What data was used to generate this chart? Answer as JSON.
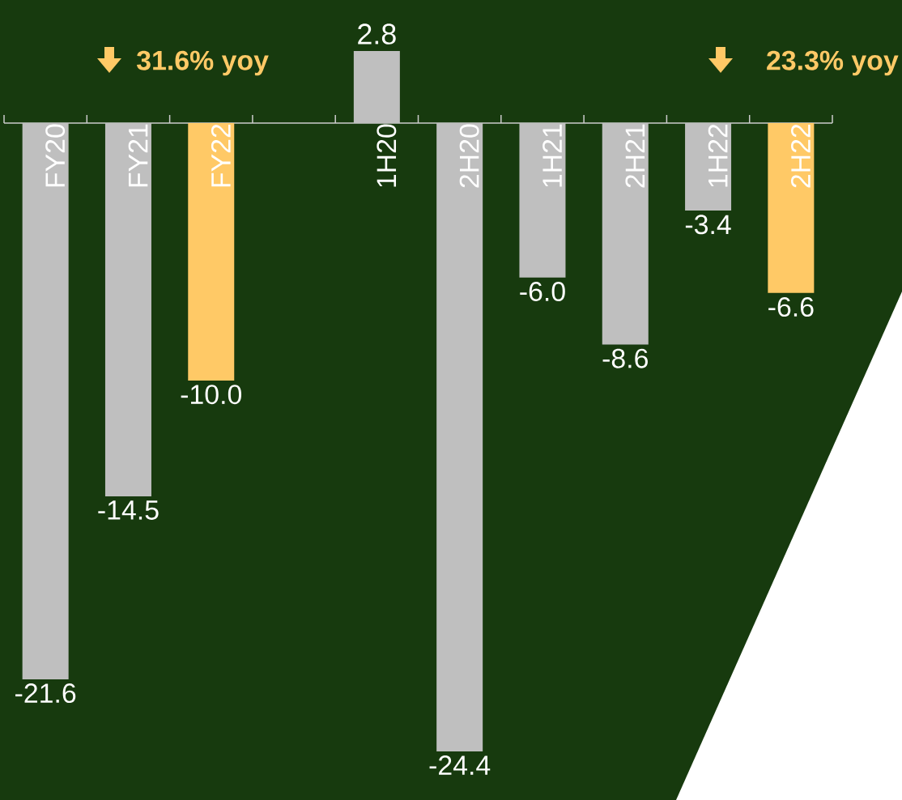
{
  "chart_data": {
    "type": "bar",
    "categories": [
      "FY20",
      "FY21",
      "FY22",
      null,
      "1H20",
      "2H20",
      "1H21",
      "2H21",
      "1H22",
      "2H22"
    ],
    "values": [
      -21.6,
      -14.5,
      -10.0,
      null,
      2.8,
      -24.4,
      -6.0,
      -8.6,
      -3.4,
      -6.6
    ],
    "value_labels": [
      "-21.6",
      "-14.5",
      "-10.0",
      null,
      "2.8",
      "-24.4",
      "-6.0",
      "-8.6",
      "-3.4",
      "-6.6"
    ],
    "colors": [
      "#bfbfbf",
      "#bfbfbf",
      "#ffc966",
      null,
      "#bfbfbf",
      "#bfbfbf",
      "#bfbfbf",
      "#bfbfbf",
      "#bfbfbf",
      "#ffc966"
    ],
    "annotations": [
      "31.6% yoy",
      "23.3% yoy"
    ]
  }
}
